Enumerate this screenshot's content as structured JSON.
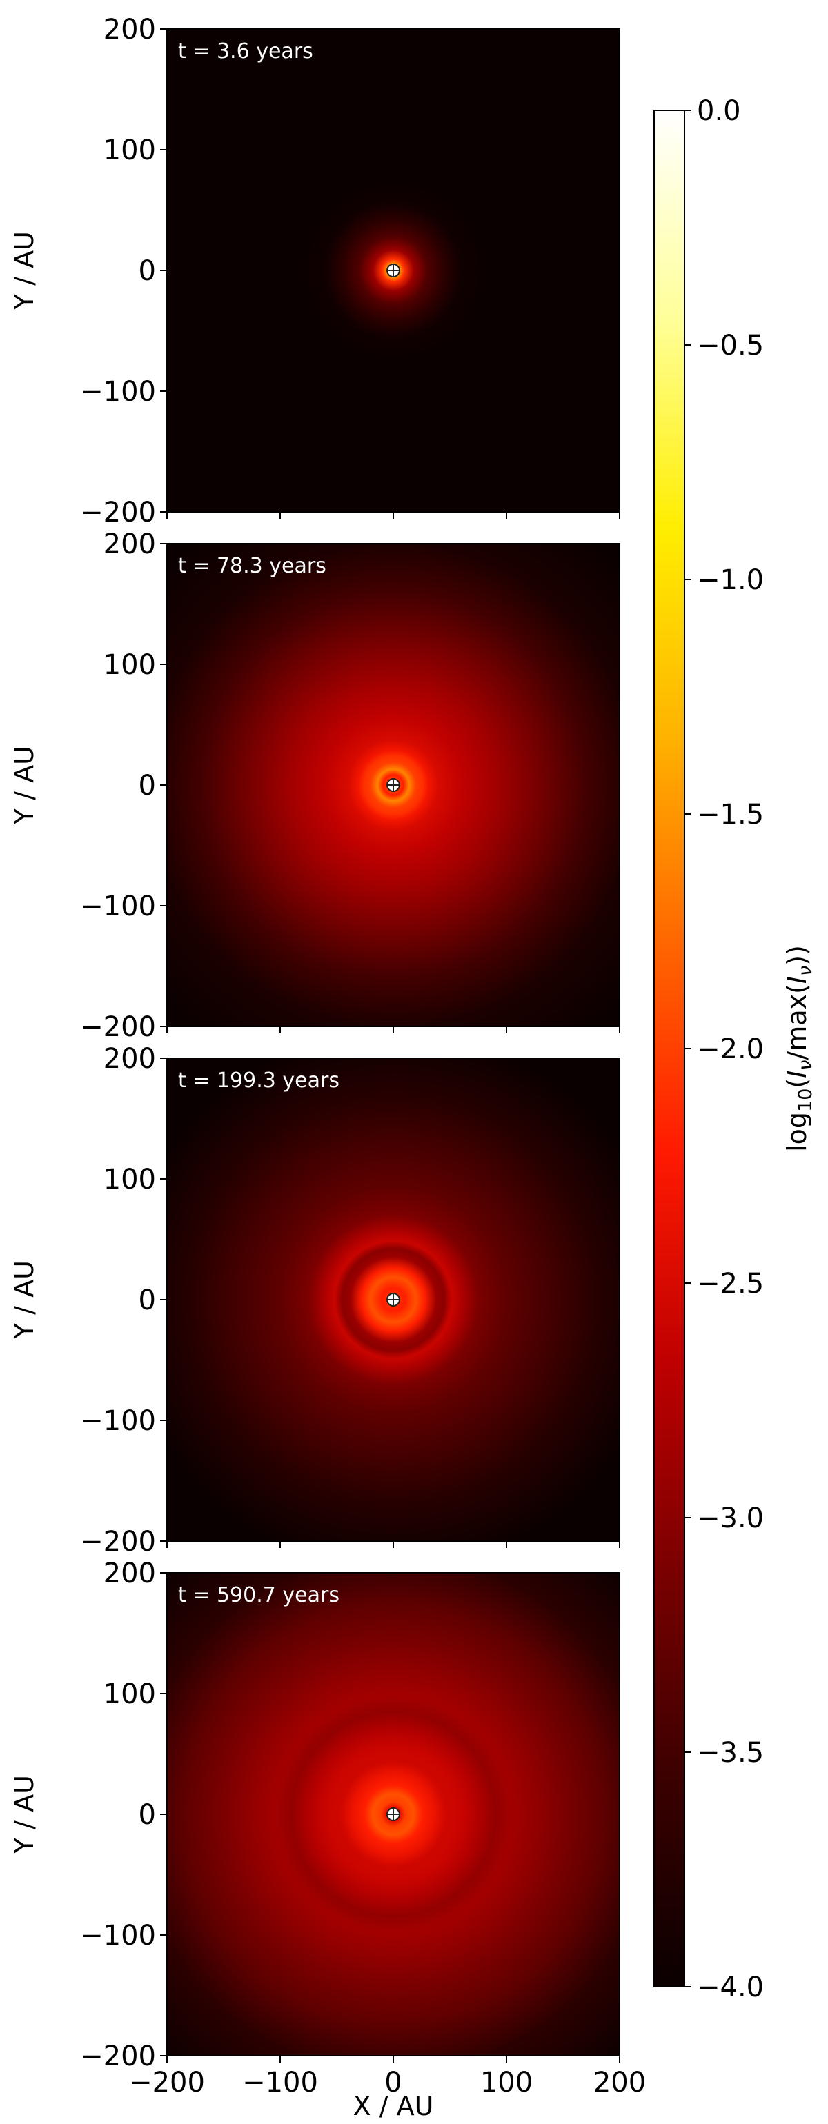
{
  "figure": {
    "xlabel": "X / AU",
    "colorbar_label_parts": [
      "log",
      "10",
      "(",
      "I",
      "ν",
      "/max(",
      "I",
      "ν",
      "))"
    ]
  },
  "chart_data": {
    "type": "heatmap",
    "panels": [
      {
        "title": "t = 3.6 years",
        "ylabel": "Y / AU",
        "x_range": [
          -200,
          200
        ],
        "y_range": [
          -200,
          200
        ],
        "yticks": [
          "200",
          "100",
          "0",
          "−100",
          "−200"
        ],
        "show_xticklabels": false,
        "rings": [
          [
            0,
            -1.0
          ],
          [
            5,
            -1.4
          ],
          [
            10,
            -2.1
          ],
          [
            18,
            -2.9
          ],
          [
            30,
            -3.4
          ],
          [
            45,
            -3.7
          ],
          [
            60,
            -3.95
          ],
          [
            80,
            -4.0
          ],
          [
            300,
            -4.0
          ]
        ]
      },
      {
        "title": "t = 78.3 years",
        "ylabel": "Y / AU",
        "x_range": [
          -200,
          200
        ],
        "y_range": [
          -200,
          200
        ],
        "yticks": [
          "200",
          "100",
          "0",
          "−100",
          "−200"
        ],
        "show_xticklabels": false,
        "rings": [
          [
            0,
            -1.0
          ],
          [
            5,
            -2.0
          ],
          [
            9,
            -2.2
          ],
          [
            14,
            -1.6
          ],
          [
            20,
            -2.0
          ],
          [
            26,
            -2.1
          ],
          [
            31,
            -2.3
          ],
          [
            40,
            -2.5
          ],
          [
            60,
            -2.65
          ],
          [
            90,
            -2.85
          ],
          [
            130,
            -3.15
          ],
          [
            170,
            -3.5
          ],
          [
            215,
            -3.85
          ],
          [
            280,
            -4.0
          ]
        ]
      },
      {
        "title": "t = 199.3 years",
        "ylabel": "Y / AU",
        "x_range": [
          -200,
          200
        ],
        "y_range": [
          -200,
          200
        ],
        "yticks": [
          "200",
          "100",
          "0",
          "−100",
          "−200"
        ],
        "show_xticklabels": false,
        "rings": [
          [
            0,
            -1.0
          ],
          [
            5,
            -2.1
          ],
          [
            10,
            -2.2
          ],
          [
            20,
            -1.9
          ],
          [
            28,
            -2.2
          ],
          [
            38,
            -2.9
          ],
          [
            45,
            -3.0
          ],
          [
            52,
            -2.6
          ],
          [
            62,
            -2.8
          ],
          [
            75,
            -3.1
          ],
          [
            100,
            -3.3
          ],
          [
            140,
            -3.5
          ],
          [
            180,
            -3.75
          ],
          [
            240,
            -4.0
          ],
          [
            300,
            -4.0
          ]
        ]
      },
      {
        "title": "t = 590.7 years",
        "ylabel": "Y / AU",
        "x_range": [
          -200,
          200
        ],
        "y_range": [
          -200,
          200
        ],
        "yticks": [
          "200",
          "100",
          "0",
          "−100",
          "−200"
        ],
        "show_xticklabels": true,
        "xticks": [
          "−200",
          "−100",
          "0",
          "100",
          "200"
        ],
        "rings": [
          [
            0,
            -1.0
          ],
          [
            6,
            -2.4
          ],
          [
            11,
            -2.0
          ],
          [
            18,
            -1.9
          ],
          [
            26,
            -2.2
          ],
          [
            36,
            -2.35
          ],
          [
            46,
            -2.55
          ],
          [
            60,
            -2.6
          ],
          [
            75,
            -2.75
          ],
          [
            90,
            -2.95
          ],
          [
            105,
            -2.85
          ],
          [
            125,
            -2.95
          ],
          [
            150,
            -3.1
          ],
          [
            185,
            -3.3
          ],
          [
            230,
            -3.7
          ],
          [
            300,
            -4.0
          ]
        ]
      }
    ],
    "colorbar": {
      "vmin": -4.0,
      "vmax": 0.0,
      "ticks": [
        0.0,
        -0.5,
        -1.0,
        -1.5,
        -2.0,
        -2.5,
        -3.0,
        -3.5,
        -4.0
      ],
      "tick_labels": [
        "0.0",
        "−0.5",
        "−1.0",
        "−1.5",
        "−2.0",
        "−2.5",
        "−3.0",
        "−3.5",
        "−4.0"
      ],
      "colormap": "hot",
      "colormap_stops": [
        "#0a0000",
        "#3b0000",
        "#7a0000",
        "#bf0000",
        "#ff1a00",
        "#ff6600",
        "#ffb300",
        "#ffee00",
        "#ffff99",
        "#ffffff"
      ]
    }
  }
}
